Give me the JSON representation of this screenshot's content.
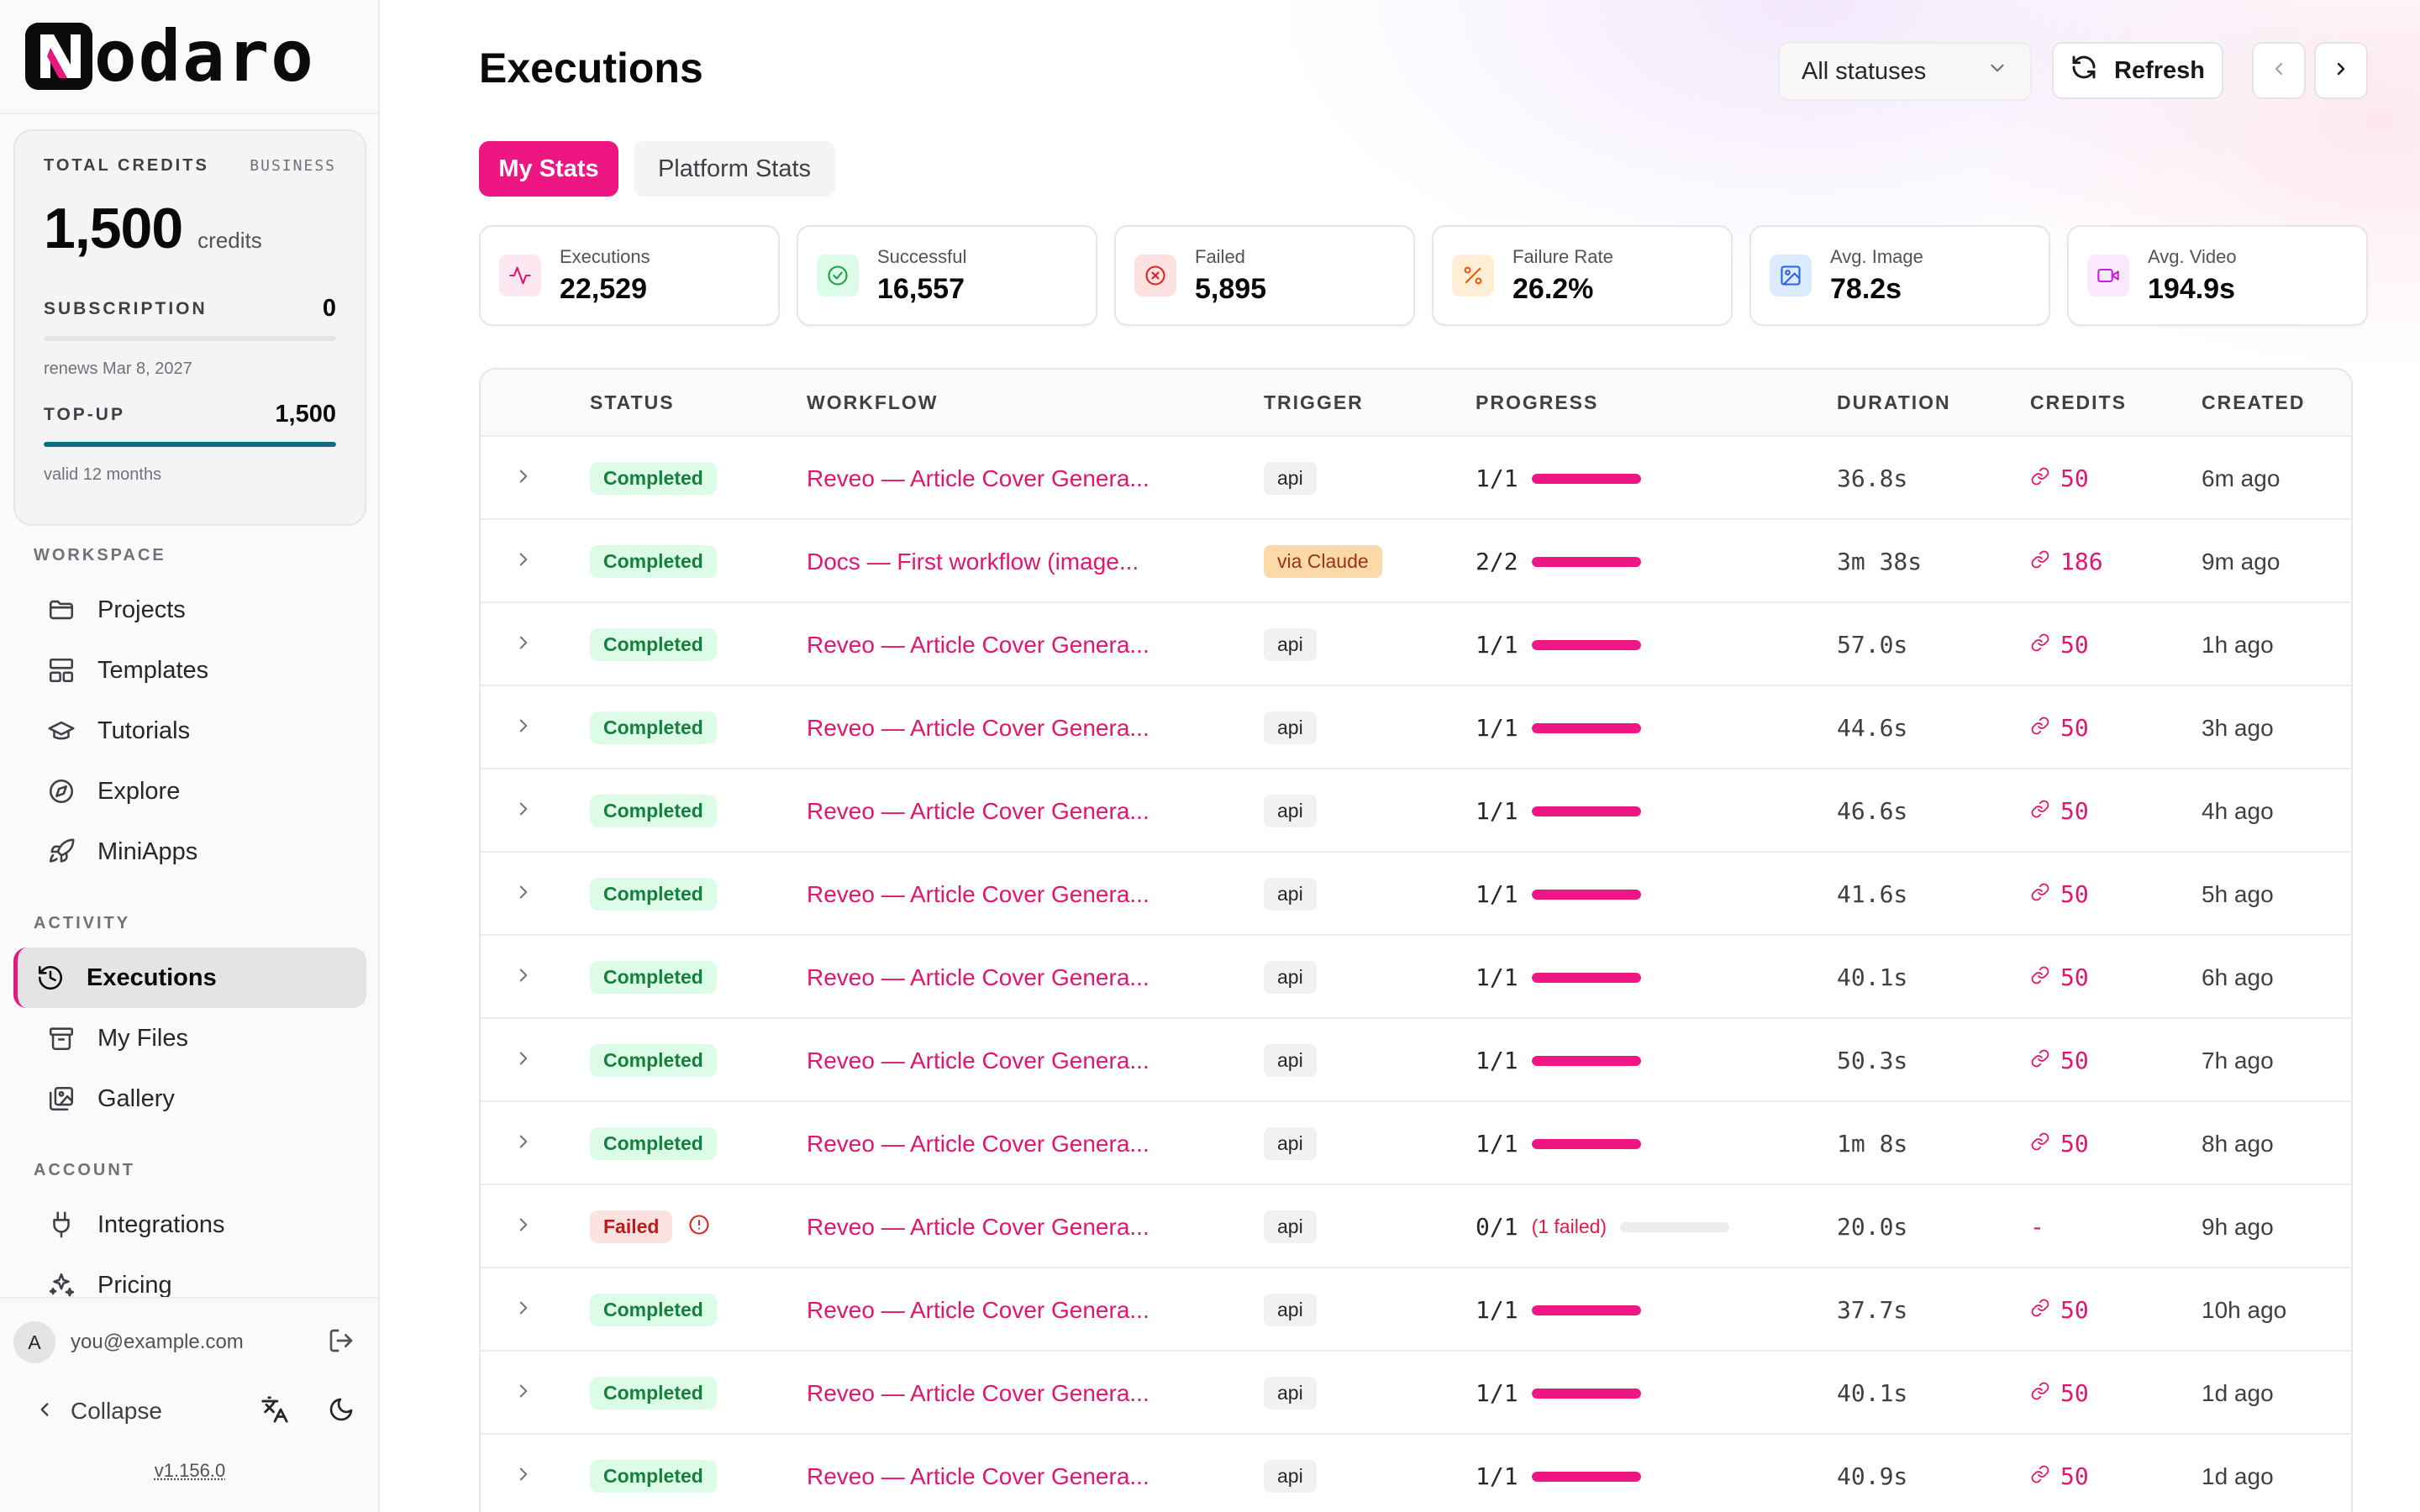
{
  "brand": {
    "name": "odaro"
  },
  "credits_card": {
    "title": "TOTAL CREDITS",
    "tier": "BUSINESS",
    "amount": "1,500",
    "unit": "credits",
    "subscription_label": "SUBSCRIPTION",
    "subscription_value": "0",
    "subscription_fill": 0,
    "renews": "renews Mar 8, 2027",
    "topup_label": "TOP-UP",
    "topup_value": "1,500",
    "topup_fill": 1,
    "topup_note": "valid 12 months"
  },
  "nav": {
    "workspace_title": "WORKSPACE",
    "workspace_items": [
      {
        "label": "Projects",
        "icon": "folder-icon"
      },
      {
        "label": "Templates",
        "icon": "templates-icon"
      },
      {
        "label": "Tutorials",
        "icon": "graduation-cap-icon"
      },
      {
        "label": "Explore",
        "icon": "compass-icon"
      },
      {
        "label": "MiniApps",
        "icon": "rocket-icon"
      }
    ],
    "activity_title": "ACTIVITY",
    "activity_items": [
      {
        "label": "Executions",
        "icon": "history-icon",
        "active": true
      },
      {
        "label": "My Files",
        "icon": "archive-icon"
      },
      {
        "label": "Gallery",
        "icon": "gallery-icon"
      }
    ],
    "account_title": "ACCOUNT",
    "account_items": [
      {
        "label": "Integrations",
        "icon": "plug-icon"
      },
      {
        "label": "Pricing",
        "icon": "sparkles-icon"
      }
    ]
  },
  "footer": {
    "avatar_initial": "A",
    "email": "you@example.com",
    "collapse_label": "Collapse",
    "version": "v1.156.0"
  },
  "header": {
    "title": "Executions",
    "status_filter": "All statuses",
    "refresh_label": "Refresh"
  },
  "tabs": {
    "my_stats": "My Stats",
    "platform_stats": "Platform Stats"
  },
  "stats": [
    {
      "label": "Executions",
      "value": "22,529",
      "icon": "activity-icon",
      "color": "#e2156f",
      "bg": "#fde7f1"
    },
    {
      "label": "Successful",
      "value": "16,557",
      "icon": "check-circle-icon",
      "color": "#16a34a",
      "bg": "#dcfce7"
    },
    {
      "label": "Failed",
      "value": "5,895",
      "icon": "x-circle-icon",
      "color": "#dc2626",
      "bg": "#fee2e2"
    },
    {
      "label": "Failure Rate",
      "value": "26.2%",
      "icon": "percent-icon",
      "color": "#ea580c",
      "bg": "#ffedd5"
    },
    {
      "label": "Avg. Image",
      "value": "78.2s",
      "icon": "image-icon",
      "color": "#2563eb",
      "bg": "#dbeafe"
    },
    {
      "label": "Avg. Video",
      "value": "194.9s",
      "icon": "video-icon",
      "color": "#c026d3",
      "bg": "#fae8ff"
    }
  ],
  "table": {
    "columns": [
      "STATUS",
      "WORKFLOW",
      "TRIGGER",
      "PROGRESS",
      "DURATION",
      "CREDITS",
      "CREATED"
    ],
    "rows": [
      {
        "status": "Completed",
        "workflow": "Reveo — Article Cover Genera...",
        "trigger": "api",
        "progress": "1/1",
        "fill": 1,
        "duration": "36.8s",
        "credits": "50",
        "created": "6m ago"
      },
      {
        "status": "Completed",
        "workflow": "Docs — First workflow (image...",
        "trigger": "via Claude",
        "progress": "2/2",
        "fill": 1,
        "duration": "3m 38s",
        "credits": "186",
        "created": "9m ago"
      },
      {
        "status": "Completed",
        "workflow": "Reveo — Article Cover Genera...",
        "trigger": "api",
        "progress": "1/1",
        "fill": 1,
        "duration": "57.0s",
        "credits": "50",
        "created": "1h ago"
      },
      {
        "status": "Completed",
        "workflow": "Reveo — Article Cover Genera...",
        "trigger": "api",
        "progress": "1/1",
        "fill": 1,
        "duration": "44.6s",
        "credits": "50",
        "created": "3h ago"
      },
      {
        "status": "Completed",
        "workflow": "Reveo — Article Cover Genera...",
        "trigger": "api",
        "progress": "1/1",
        "fill": 1,
        "duration": "46.6s",
        "credits": "50",
        "created": "4h ago"
      },
      {
        "status": "Completed",
        "workflow": "Reveo — Article Cover Genera...",
        "trigger": "api",
        "progress": "1/1",
        "fill": 1,
        "duration": "41.6s",
        "credits": "50",
        "created": "5h ago"
      },
      {
        "status": "Completed",
        "workflow": "Reveo — Article Cover Genera...",
        "trigger": "api",
        "progress": "1/1",
        "fill": 1,
        "duration": "40.1s",
        "credits": "50",
        "created": "6h ago"
      },
      {
        "status": "Completed",
        "workflow": "Reveo — Article Cover Genera...",
        "trigger": "api",
        "progress": "1/1",
        "fill": 1,
        "duration": "50.3s",
        "credits": "50",
        "created": "7h ago"
      },
      {
        "status": "Completed",
        "workflow": "Reveo — Article Cover Genera...",
        "trigger": "api",
        "progress": "1/1",
        "fill": 1,
        "duration": "1m 8s",
        "credits": "50",
        "created": "8h ago"
      },
      {
        "status": "Failed",
        "workflow": "Reveo — Article Cover Genera...",
        "trigger": "api",
        "progress": "0/1",
        "fill": 0,
        "failed_note": "(1 failed)",
        "duration": "20.0s",
        "credits": "-",
        "created": "9h ago"
      },
      {
        "status": "Completed",
        "workflow": "Reveo — Article Cover Genera...",
        "trigger": "api",
        "progress": "1/1",
        "fill": 1,
        "duration": "37.7s",
        "credits": "50",
        "created": "10h ago"
      },
      {
        "status": "Completed",
        "workflow": "Reveo — Article Cover Genera...",
        "trigger": "api",
        "progress": "1/1",
        "fill": 1,
        "duration": "40.1s",
        "credits": "50",
        "created": "1d ago"
      },
      {
        "status": "Completed",
        "workflow": "Reveo — Article Cover Genera...",
        "trigger": "api",
        "progress": "1/1",
        "fill": 1,
        "duration": "40.9s",
        "credits": "50",
        "created": "1d ago"
      }
    ]
  }
}
